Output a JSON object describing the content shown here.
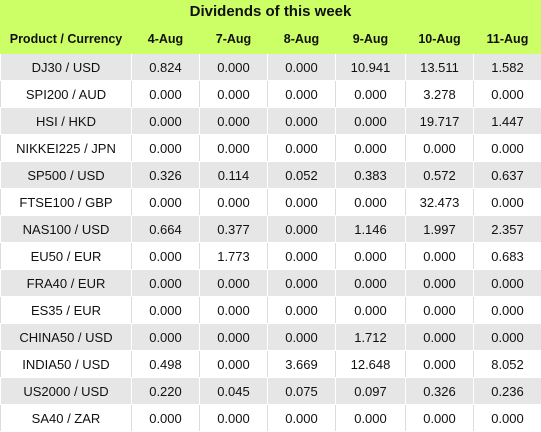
{
  "title": "Dividends of this week",
  "headers": [
    "Product / Currency",
    "4-Aug",
    "7-Aug",
    "8-Aug",
    "9-Aug",
    "10-Aug",
    "11-Aug"
  ],
  "rows": [
    [
      "DJ30 / USD",
      "0.824",
      "0.000",
      "0.000",
      "10.941",
      "13.511",
      "1.582"
    ],
    [
      "SPI200 / AUD",
      "0.000",
      "0.000",
      "0.000",
      "0.000",
      "3.278",
      "0.000"
    ],
    [
      "HSI / HKD",
      "0.000",
      "0.000",
      "0.000",
      "0.000",
      "19.717",
      "1.447"
    ],
    [
      "NIKKEI225 / JPN",
      "0.000",
      "0.000",
      "0.000",
      "0.000",
      "0.000",
      "0.000"
    ],
    [
      "SP500 / USD",
      "0.326",
      "0.114",
      "0.052",
      "0.383",
      "0.572",
      "0.637"
    ],
    [
      "FTSE100 / GBP",
      "0.000",
      "0.000",
      "0.000",
      "0.000",
      "32.473",
      "0.000"
    ],
    [
      "NAS100 / USD",
      "0.664",
      "0.377",
      "0.000",
      "1.146",
      "1.997",
      "2.357"
    ],
    [
      "EU50 / EUR",
      "0.000",
      "1.773",
      "0.000",
      "0.000",
      "0.000",
      "0.683"
    ],
    [
      "FRA40 / EUR",
      "0.000",
      "0.000",
      "0.000",
      "0.000",
      "0.000",
      "0.000"
    ],
    [
      "ES35 / EUR",
      "0.000",
      "0.000",
      "0.000",
      "0.000",
      "0.000",
      "0.000"
    ],
    [
      "CHINA50 / USD",
      "0.000",
      "0.000",
      "0.000",
      "1.712",
      "0.000",
      "0.000"
    ],
    [
      "INDIA50 / USD",
      "0.498",
      "0.000",
      "3.669",
      "12.648",
      "0.000",
      "8.052"
    ],
    [
      "US2000 / USD",
      "0.220",
      "0.045",
      "0.075",
      "0.097",
      "0.326",
      "0.236"
    ],
    [
      "SA40 / ZAR",
      "0.000",
      "0.000",
      "0.000",
      "0.000",
      "0.000",
      "0.000"
    ]
  ],
  "colors": {
    "header_bg": "#ccff66",
    "row_alt_bg": "#e6e6e6",
    "row_bg": "#ffffff"
  }
}
